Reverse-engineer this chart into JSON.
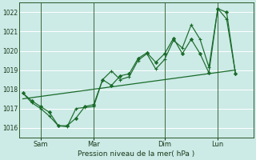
{
  "xlabel": "Pression niveau de la mer( hPa )",
  "ylim": [
    1015.5,
    1022.5
  ],
  "yticks": [
    1016,
    1017,
    1018,
    1019,
    1020,
    1021,
    1022
  ],
  "xtick_labels": [
    "Sam",
    "Mar",
    "Dim",
    "Lun"
  ],
  "xtick_positions": [
    1,
    4,
    8,
    11
  ],
  "vlines": [
    1,
    4,
    8,
    11
  ],
  "bg_color": "#cceae6",
  "grid_color": "#ffffff",
  "line_color": "#1a6b2a",
  "line1_x": [
    0,
    0.5,
    1,
    1.5,
    2,
    2.5,
    3,
    3.5,
    4,
    4.5,
    5,
    5.5,
    6,
    6.5,
    7,
    7.5,
    8,
    8.5,
    9,
    9.5,
    10,
    10.5,
    11,
    11.5,
    12
  ],
  "line1": [
    1017.8,
    1017.4,
    1017.1,
    1016.8,
    1016.1,
    1016.1,
    1016.5,
    1017.1,
    1017.2,
    1018.5,
    1018.2,
    1018.7,
    1018.8,
    1019.6,
    1019.9,
    1019.4,
    1019.85,
    1020.65,
    1019.85,
    1020.6,
    1019.85,
    1018.85,
    1022.2,
    1022.0,
    1018.8
  ],
  "line2_x": [
    0,
    0.5,
    1,
    1.5,
    2,
    2.5,
    3,
    3.5,
    4,
    4.5,
    5,
    5.5,
    6,
    6.5,
    7,
    7.5,
    8,
    8.5,
    9,
    9.5,
    10,
    10.5,
    11,
    11.5,
    12
  ],
  "line2": [
    1017.8,
    1017.3,
    1017.0,
    1016.6,
    1016.1,
    1016.05,
    1017.0,
    1017.05,
    1017.1,
    1018.5,
    1018.95,
    1018.5,
    1018.65,
    1019.5,
    1019.85,
    1019.05,
    1019.55,
    1020.55,
    1020.15,
    1021.35,
    1020.6,
    1019.15,
    1022.2,
    1021.65,
    1018.8
  ],
  "trend_x": [
    0,
    12
  ],
  "trend": [
    1017.5,
    1019.0
  ],
  "xlim": [
    -0.2,
    13.0
  ]
}
